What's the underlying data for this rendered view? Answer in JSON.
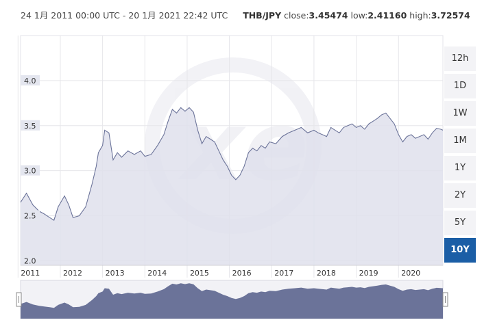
{
  "header": {
    "range": "24 1月 2011 00:00 UTC - 20 1月 2021 22:42 UTC",
    "pair": "THB/JPY",
    "close_label": "close:",
    "close_value": "3.45474",
    "low_label": "low:",
    "low_value": "2.41160",
    "high_label": "high:",
    "high_value": "3.72574"
  },
  "timeframes": [
    {
      "label": "12h",
      "active": false
    },
    {
      "label": "1D",
      "active": false
    },
    {
      "label": "1W",
      "active": false
    },
    {
      "label": "1M",
      "active": false
    },
    {
      "label": "1Y",
      "active": false
    },
    {
      "label": "2Y",
      "active": false
    },
    {
      "label": "5Y",
      "active": false
    },
    {
      "label": "10Y",
      "active": true
    }
  ],
  "colors": {
    "line": "#6b7399",
    "area": "#dfe1ec",
    "navigator": "#6b7399",
    "active_button": "#1b5ea6"
  },
  "chart_data": {
    "type": "area",
    "title": "",
    "xlabel": "",
    "ylabel": "",
    "ylim": [
      1.95,
      4.5
    ],
    "xlim": [
      2011.06,
      2021.05
    ],
    "y_ticks": [
      "2.0",
      "2.5",
      "3.0",
      "3.5",
      "4.0"
    ],
    "x_ticks": [
      "2011",
      "2012",
      "2013",
      "2014",
      "2015",
      "2016",
      "2017",
      "2018",
      "2019",
      "2020"
    ],
    "series": [
      {
        "x": [
          2011.06,
          2011.2,
          2011.35,
          2011.5,
          2011.62,
          2011.75,
          2011.85,
          2011.95,
          2012.1,
          2012.2,
          2012.3,
          2012.45,
          2012.6,
          2012.75,
          2012.85,
          2012.9,
          2013.0,
          2013.05,
          2013.15,
          2013.25,
          2013.35,
          2013.45,
          2013.6,
          2013.75,
          2013.9,
          2014.0,
          2014.15,
          2014.3,
          2014.45,
          2014.55,
          2014.65,
          2014.75,
          2014.85,
          2014.95,
          2015.05,
          2015.15,
          2015.25,
          2015.35,
          2015.45,
          2015.55,
          2015.65,
          2015.75,
          2015.85,
          2015.95,
          2016.05,
          2016.15,
          2016.25,
          2016.35,
          2016.45,
          2016.55,
          2016.65,
          2016.75,
          2016.85,
          2016.95,
          2017.1,
          2017.25,
          2017.4,
          2017.55,
          2017.7,
          2017.85,
          2018.0,
          2018.1,
          2018.2,
          2018.3,
          2018.4,
          2018.5,
          2018.6,
          2018.7,
          2018.8,
          2018.9,
          2019.0,
          2019.1,
          2019.2,
          2019.3,
          2019.4,
          2019.5,
          2019.6,
          2019.7,
          2019.8,
          2019.9,
          2020.0,
          2020.1,
          2020.2,
          2020.3,
          2020.4,
          2020.5,
          2020.6,
          2020.7,
          2020.8,
          2020.9,
          2021.0,
          2021.05
        ],
        "y": [
          2.65,
          2.75,
          2.62,
          2.55,
          2.52,
          2.48,
          2.45,
          2.6,
          2.72,
          2.62,
          2.48,
          2.5,
          2.6,
          2.85,
          3.05,
          3.2,
          3.28,
          3.45,
          3.42,
          3.12,
          3.2,
          3.15,
          3.22,
          3.18,
          3.22,
          3.16,
          3.18,
          3.28,
          3.4,
          3.55,
          3.68,
          3.64,
          3.7,
          3.66,
          3.7,
          3.65,
          3.45,
          3.3,
          3.38,
          3.35,
          3.32,
          3.22,
          3.12,
          3.05,
          2.95,
          2.9,
          2.95,
          3.05,
          3.2,
          3.25,
          3.22,
          3.28,
          3.25,
          3.32,
          3.3,
          3.38,
          3.42,
          3.45,
          3.48,
          3.42,
          3.45,
          3.42,
          3.4,
          3.38,
          3.48,
          3.45,
          3.42,
          3.48,
          3.5,
          3.52,
          3.48,
          3.5,
          3.46,
          3.52,
          3.55,
          3.58,
          3.62,
          3.64,
          3.58,
          3.52,
          3.4,
          3.32,
          3.38,
          3.4,
          3.36,
          3.38,
          3.4,
          3.35,
          3.42,
          3.47,
          3.46,
          3.45
        ]
      }
    ],
    "navigator": {
      "x_range": [
        2011.06,
        2021.05
      ]
    }
  }
}
